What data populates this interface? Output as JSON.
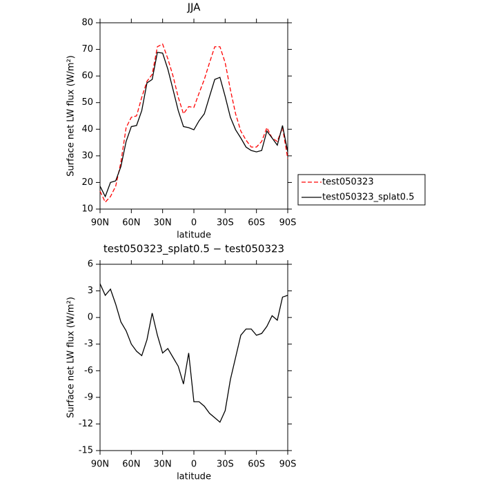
{
  "chart_data": [
    {
      "type": "line",
      "title": "JJA",
      "x_label": "latitude",
      "y_label": "Surface net LW flux (W/m²)",
      "x": [
        90,
        85,
        80,
        75,
        70,
        65,
        60,
        55,
        50,
        45,
        40,
        35,
        30,
        25,
        20,
        15,
        10,
        5,
        0,
        -5,
        -10,
        -15,
        -20,
        -25,
        -30,
        -35,
        -40,
        -45,
        -50,
        -55,
        -60,
        -65,
        -70,
        -75,
        -80,
        -85,
        -90
      ],
      "xlim": [
        90,
        -90
      ],
      "xticks": [
        {
          "value": 90,
          "label": "90N"
        },
        {
          "value": 60,
          "label": "60N"
        },
        {
          "value": 30,
          "label": "30N"
        },
        0,
        {
          "value": -30,
          "label": "30S"
        },
        {
          "value": -60,
          "label": "60S"
        },
        {
          "value": -90,
          "label": "90S"
        }
      ],
      "ylim": [
        10,
        80
      ],
      "yticks": [
        10,
        20,
        30,
        40,
        50,
        60,
        70,
        80
      ],
      "legend": "right",
      "series": [
        {
          "name": "test050323",
          "color": "#ff0000",
          "dashed": true,
          "values": [
            16.7,
            12.6,
            14.7,
            18.6,
            27.6,
            40.6,
            44.5,
            45,
            52,
            58,
            60.6,
            71,
            72,
            66.5,
            60,
            52,
            45.8,
            48.5,
            48.2,
            53.6,
            58.7,
            65,
            71,
            71,
            65,
            54.9,
            45.8,
            39.3,
            35.9,
            33.3,
            33.3,
            35.4,
            40.6,
            36.7,
            35.4,
            40.6,
            29
          ]
        },
        {
          "name": "test050323_splat0.5",
          "color": "#000000",
          "dashed": false,
          "values": [
            18.6,
            14.7,
            20,
            20.6,
            26,
            35.4,
            41,
            41.4,
            47,
            57.4,
            58.7,
            68.9,
            68.6,
            62.6,
            54.9,
            47,
            41,
            40.6,
            39.8,
            43.2,
            45.8,
            52.3,
            58.7,
            59.5,
            52.3,
            44.5,
            39.8,
            36.7,
            33.3,
            32,
            31.5,
            32,
            39.3,
            36.7,
            34,
            41.4,
            31.5
          ]
        }
      ]
    },
    {
      "type": "line",
      "title": "test050323_splat0.5 − test050323",
      "x_label": "latitude",
      "y_label": "Surface net LW flux (W/m²)",
      "x": [
        90,
        85,
        80,
        75,
        70,
        65,
        60,
        55,
        50,
        45,
        40,
        35,
        30,
        25,
        20,
        15,
        10,
        5,
        0,
        -5,
        -10,
        -15,
        -20,
        -25,
        -30,
        -35,
        -40,
        -45,
        -50,
        -55,
        -60,
        -65,
        -70,
        -75,
        -80,
        -85,
        -90
      ],
      "xlim": [
        90,
        -90
      ],
      "xticks": [
        {
          "value": 90,
          "label": "90N"
        },
        {
          "value": 60,
          "label": "60N"
        },
        {
          "value": 30,
          "label": "30N"
        },
        0,
        {
          "value": -30,
          "label": "30S"
        },
        {
          "value": -60,
          "label": "60S"
        },
        {
          "value": -90,
          "label": "90S"
        }
      ],
      "ylim": [
        -15,
        6
      ],
      "yticks": [
        -15,
        -12,
        -9,
        -6,
        -3,
        0,
        3,
        6
      ],
      "series": [
        {
          "color": "#000000",
          "dashed": false,
          "values": [
            3.8,
            2.5,
            3.2,
            1.5,
            -0.5,
            -1.5,
            -3,
            -3.8,
            -4.3,
            -2.5,
            0.5,
            -2,
            -4,
            -3.5,
            -4.5,
            -5.5,
            -7.5,
            -4,
            -9.5,
            -9.5,
            -10,
            -10.8,
            -11.3,
            -11.8,
            -10.5,
            -7,
            -4.5,
            -2,
            -1.3,
            -1.3,
            -2,
            -1.8,
            -1,
            0.2,
            -0.3,
            2.3,
            2.5
          ]
        }
      ]
    }
  ]
}
